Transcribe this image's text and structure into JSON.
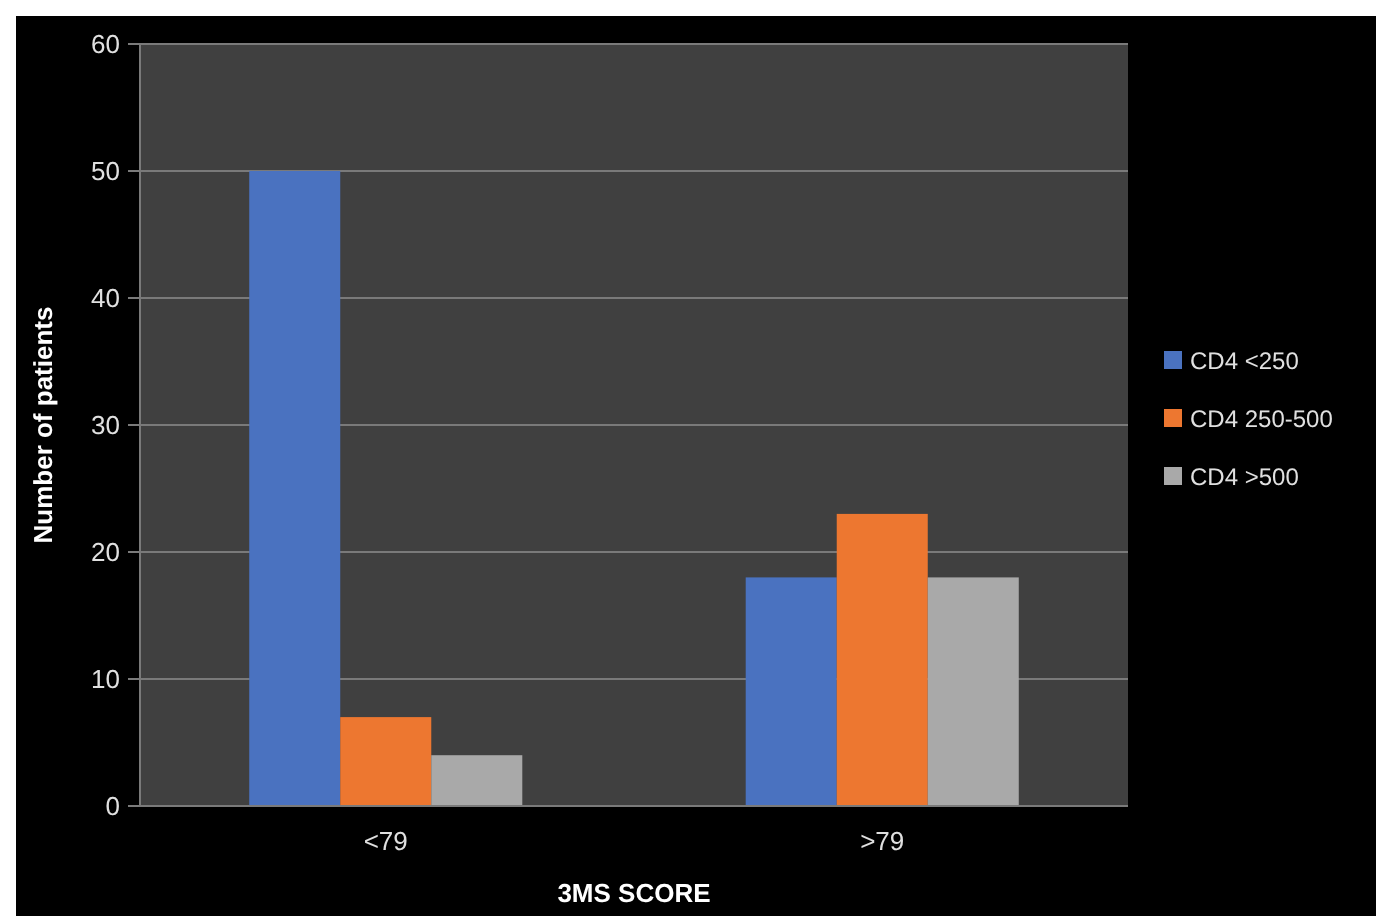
{
  "chart_data": {
    "type": "bar",
    "xlabel": "3MS SCORE",
    "ylabel": "Number of patients",
    "categories": [
      "<79",
      ">79"
    ],
    "series": [
      {
        "name": "CD4 <250",
        "color": "#4a72c0",
        "values": [
          50,
          18
        ]
      },
      {
        "name": "CD4 250-500",
        "color": "#ed7730",
        "values": [
          7,
          23
        ]
      },
      {
        "name": "CD4 >500",
        "color": "#a9a9a9",
        "values": [
          4,
          18
        ]
      }
    ],
    "ylim": [
      0,
      60
    ],
    "yticks": [
      0,
      10,
      20,
      30,
      40,
      50,
      60
    ],
    "grid": "y",
    "legend": "right"
  }
}
